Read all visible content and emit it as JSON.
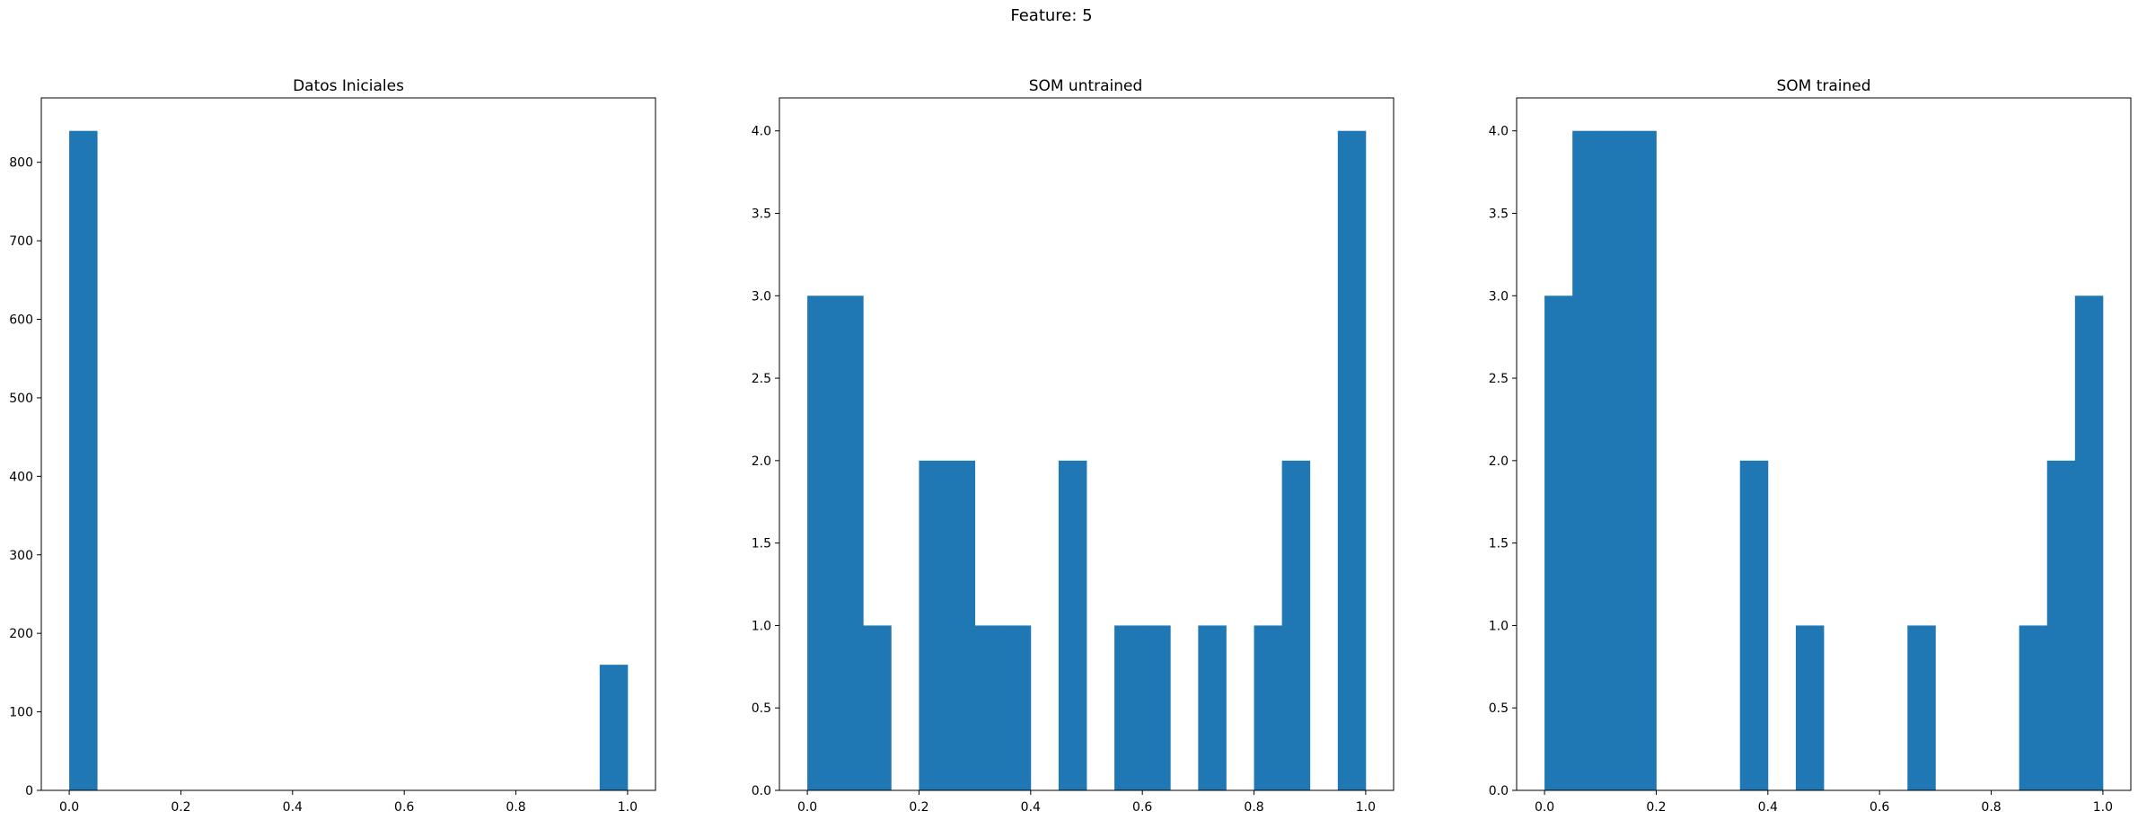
{
  "suptitle": "Feature: 5",
  "bar_color": "#1f77b4",
  "chart_data": [
    {
      "type": "bar",
      "title": "Datos Iniciales",
      "bin_edges": [
        0.0,
        0.05,
        0.1,
        0.15,
        0.2,
        0.25,
        0.3,
        0.35,
        0.4,
        0.45,
        0.5,
        0.55,
        0.6,
        0.65,
        0.7,
        0.75,
        0.8,
        0.85,
        0.9,
        0.95,
        1.0
      ],
      "values": [
        840,
        0,
        0,
        0,
        0,
        0,
        0,
        0,
        0,
        0,
        0,
        0,
        0,
        0,
        0,
        0,
        0,
        0,
        0,
        160
      ],
      "xlim": [
        -0.05,
        1.05
      ],
      "ylim": [
        0,
        882
      ],
      "xticks": [
        0.0,
        0.2,
        0.4,
        0.6,
        0.8,
        1.0
      ],
      "xtick_labels": [
        "0.0",
        "0.2",
        "0.4",
        "0.6",
        "0.8",
        "1.0"
      ],
      "yticks": [
        0,
        100,
        200,
        300,
        400,
        500,
        600,
        700,
        800
      ],
      "ytick_labels": [
        "0",
        "100",
        "200",
        "300",
        "400",
        "500",
        "600",
        "700",
        "800"
      ],
      "grid": false
    },
    {
      "type": "bar",
      "title": "SOM untrained",
      "bin_edges": [
        0.0,
        0.05,
        0.1,
        0.15,
        0.2,
        0.25,
        0.3,
        0.35,
        0.4,
        0.45,
        0.5,
        0.55,
        0.6,
        0.65,
        0.7,
        0.75,
        0.8,
        0.85,
        0.9,
        0.95,
        1.0
      ],
      "values": [
        3,
        3,
        1,
        0,
        2,
        2,
        1,
        1,
        0,
        2,
        0,
        1,
        1,
        0,
        1,
        0,
        1,
        2,
        0,
        4
      ],
      "xlim": [
        -0.05,
        1.05
      ],
      "ylim": [
        0,
        4.2
      ],
      "xticks": [
        0.0,
        0.2,
        0.4,
        0.6,
        0.8,
        1.0
      ],
      "xtick_labels": [
        "0.0",
        "0.2",
        "0.4",
        "0.6",
        "0.8",
        "1.0"
      ],
      "yticks": [
        0,
        0.5,
        1,
        1.5,
        2,
        2.5,
        3,
        3.5,
        4
      ],
      "ytick_labels": [
        "0.0",
        "0.5",
        "1.0",
        "1.5",
        "2.0",
        "2.5",
        "3.0",
        "3.5",
        "4.0"
      ],
      "grid": false
    },
    {
      "type": "bar",
      "title": "SOM trained",
      "bin_edges": [
        0.0,
        0.05,
        0.1,
        0.15,
        0.2,
        0.25,
        0.3,
        0.35,
        0.4,
        0.45,
        0.5,
        0.55,
        0.6,
        0.65,
        0.7,
        0.75,
        0.8,
        0.85,
        0.9,
        0.95,
        1.0
      ],
      "values": [
        3,
        4,
        4,
        4,
        0,
        0,
        0,
        2,
        0,
        1,
        0,
        0,
        0,
        1,
        0,
        0,
        0,
        1,
        2,
        3
      ],
      "xlim": [
        -0.05,
        1.05
      ],
      "ylim": [
        0,
        4.2
      ],
      "xticks": [
        0.0,
        0.2,
        0.4,
        0.6,
        0.8,
        1.0
      ],
      "xtick_labels": [
        "0.0",
        "0.2",
        "0.4",
        "0.6",
        "0.8",
        "1.0"
      ],
      "yticks": [
        0,
        0.5,
        1,
        1.5,
        2,
        2.5,
        3,
        3.5,
        4
      ],
      "ytick_labels": [
        "0.0",
        "0.5",
        "1.0",
        "1.5",
        "2.0",
        "2.5",
        "3.0",
        "3.5",
        "4.0"
      ],
      "grid": false
    }
  ]
}
